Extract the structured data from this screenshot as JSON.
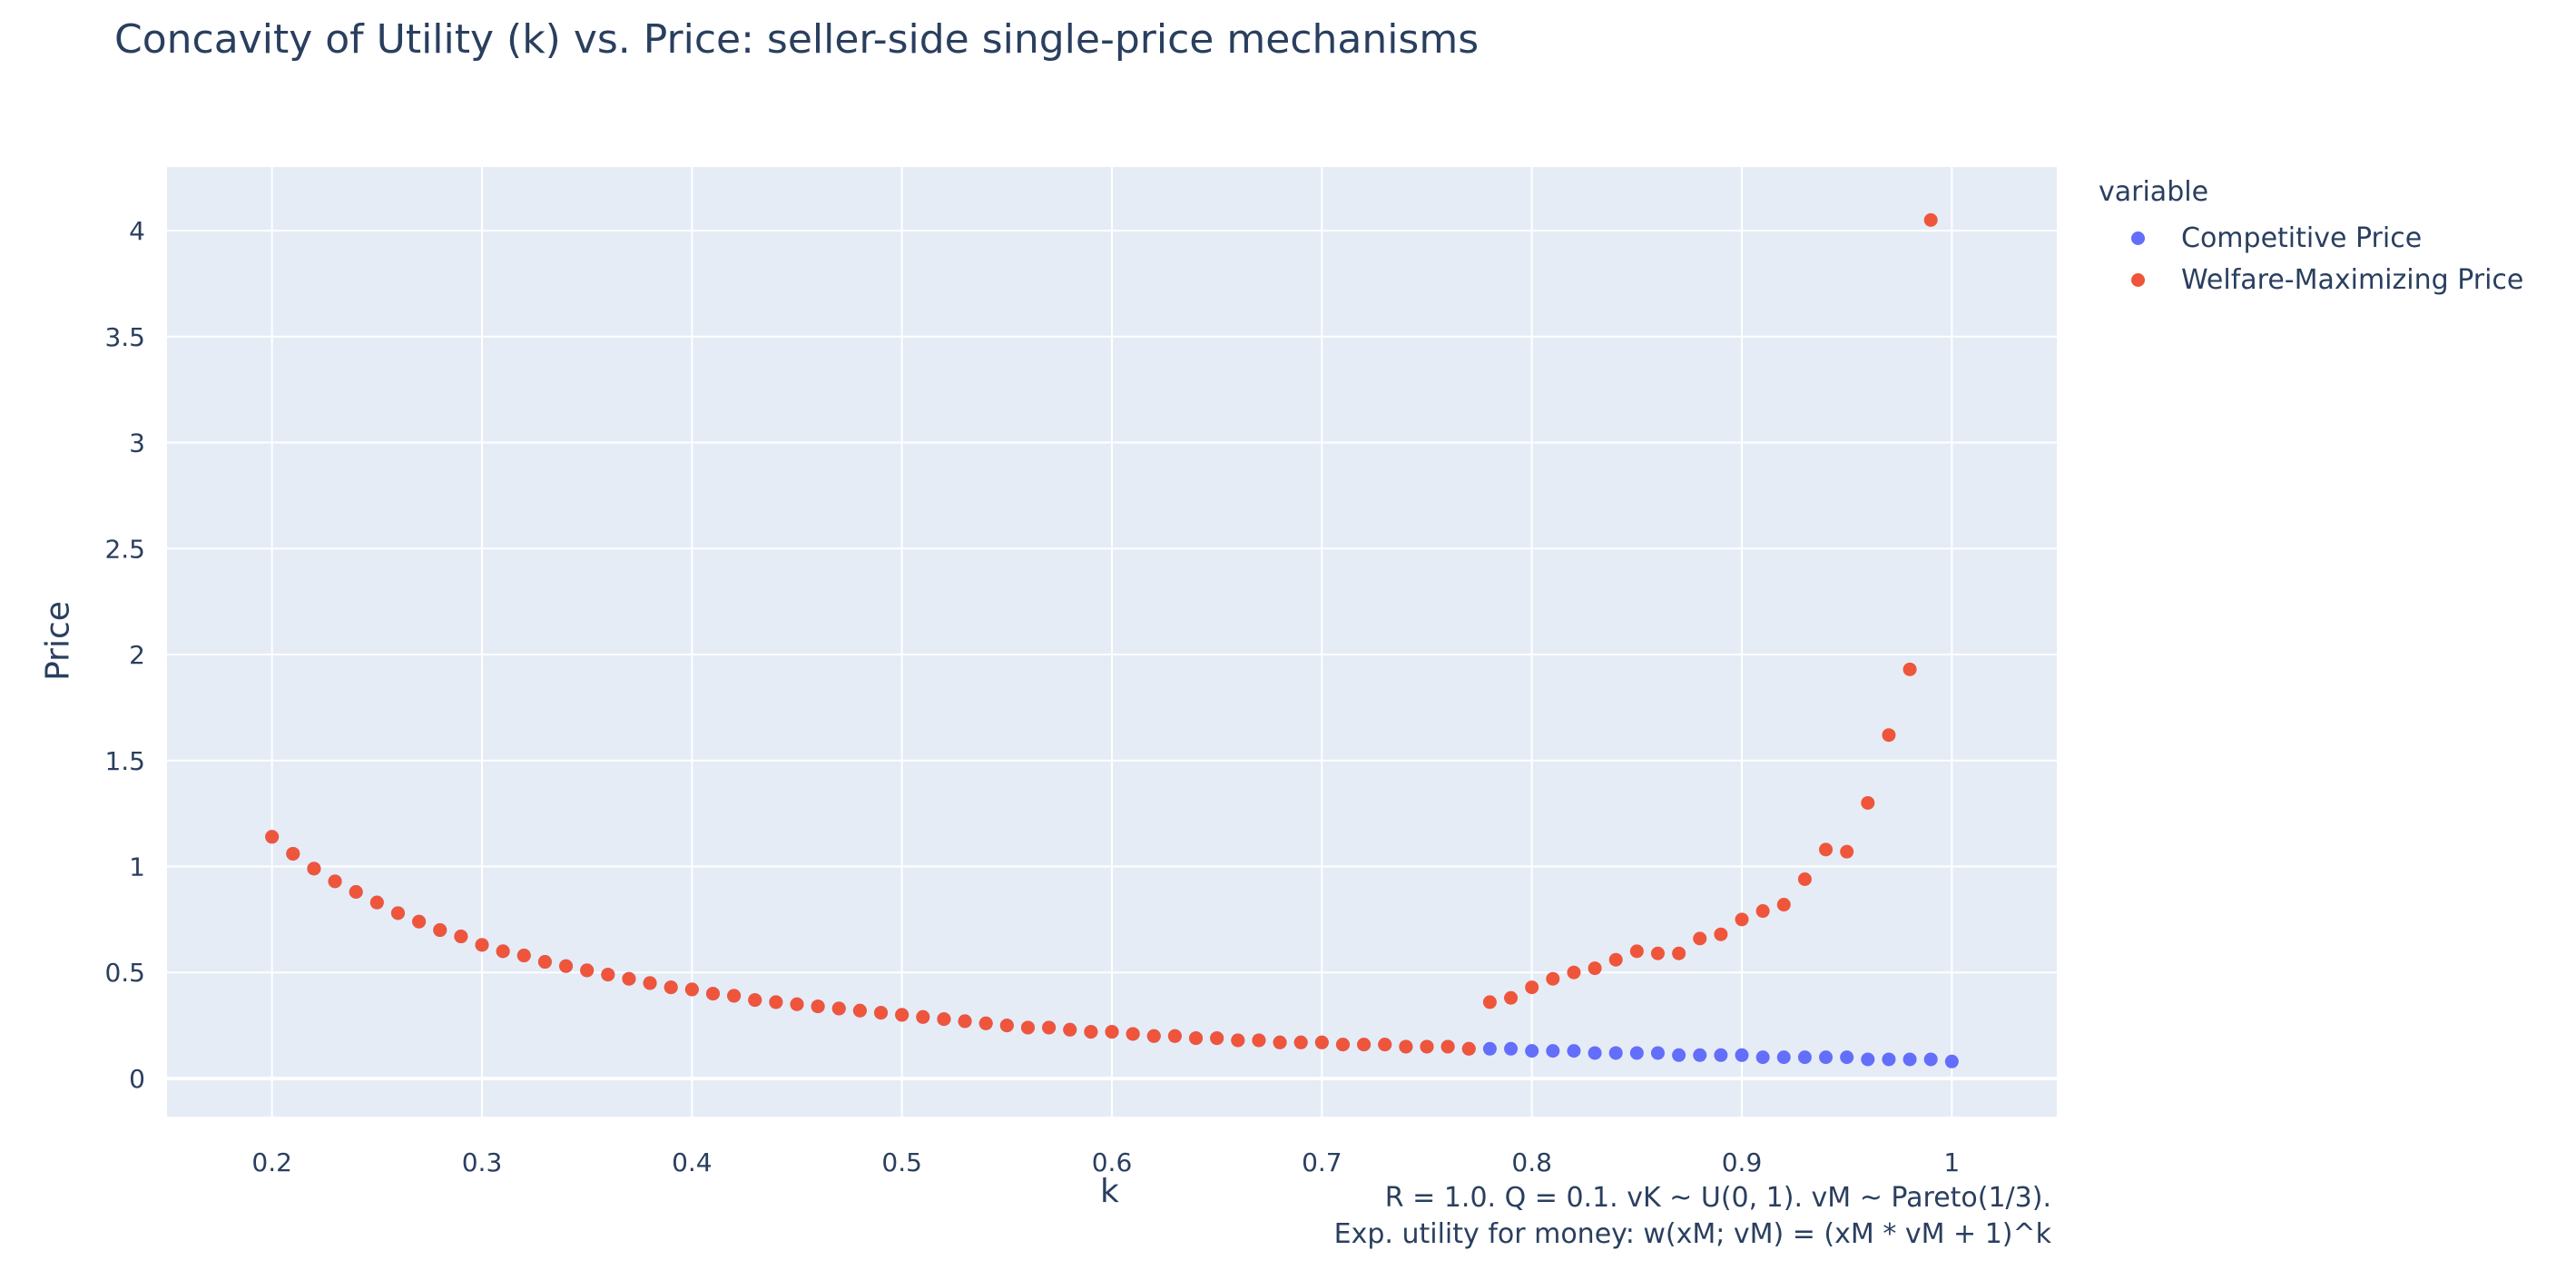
{
  "chart_data": {
    "type": "scatter",
    "title": "Concavity of Utility (k) vs. Price: seller-side single-price mechanisms",
    "xlabel": "k",
    "ylabel": "Price",
    "xlim": [
      0.15,
      1.05
    ],
    "ylim": [
      -0.18,
      4.3
    ],
    "xticks": [
      0.2,
      0.3,
      0.4,
      0.5,
      0.6,
      0.7,
      0.8,
      0.9,
      1
    ],
    "xtick_labels": [
      "0.2",
      "0.3",
      "0.4",
      "0.5",
      "0.6",
      "0.7",
      "0.8",
      "0.9",
      "1"
    ],
    "yticks": [
      0,
      0.5,
      1,
      1.5,
      2,
      2.5,
      3,
      3.5,
      4
    ],
    "ytick_labels": [
      "0",
      "0.5",
      "1",
      "1.5",
      "2",
      "2.5",
      "3",
      "3.5",
      "4"
    ],
    "grid": true,
    "legend_title": "variable",
    "legend_position": "right",
    "series": [
      {
        "name": "Competitive Price",
        "color": "#636efa",
        "x": [
          0.2,
          0.21,
          0.22,
          0.23,
          0.24,
          0.25,
          0.26,
          0.27,
          0.28,
          0.29,
          0.3,
          0.31,
          0.32,
          0.33,
          0.34,
          0.35,
          0.36,
          0.37,
          0.38,
          0.39,
          0.4,
          0.41,
          0.42,
          0.43,
          0.44,
          0.45,
          0.46,
          0.47,
          0.48,
          0.49,
          0.5,
          0.51,
          0.52,
          0.53,
          0.54,
          0.55,
          0.56,
          0.57,
          0.58,
          0.59,
          0.6,
          0.61,
          0.62,
          0.63,
          0.64,
          0.65,
          0.66,
          0.67,
          0.68,
          0.69,
          0.7,
          0.71,
          0.72,
          0.73,
          0.74,
          0.75,
          0.76,
          0.77,
          0.78,
          0.79,
          0.8,
          0.81,
          0.82,
          0.83,
          0.84,
          0.85,
          0.86,
          0.87,
          0.88,
          0.89,
          0.9,
          0.91,
          0.92,
          0.93,
          0.94,
          0.95,
          0.96,
          0.97,
          0.98,
          0.99,
          1.0
        ],
        "y": [
          1.14,
          1.06,
          0.99,
          0.93,
          0.88,
          0.83,
          0.78,
          0.74,
          0.7,
          0.67,
          0.63,
          0.6,
          0.58,
          0.55,
          0.53,
          0.51,
          0.49,
          0.47,
          0.45,
          0.43,
          0.42,
          0.4,
          0.39,
          0.37,
          0.36,
          0.35,
          0.34,
          0.33,
          0.32,
          0.31,
          0.3,
          0.29,
          0.28,
          0.27,
          0.26,
          0.25,
          0.24,
          0.24,
          0.23,
          0.22,
          0.22,
          0.21,
          0.2,
          0.2,
          0.19,
          0.19,
          0.18,
          0.18,
          0.17,
          0.17,
          0.17,
          0.16,
          0.16,
          0.16,
          0.15,
          0.15,
          0.15,
          0.14,
          0.14,
          0.14,
          0.13,
          0.13,
          0.13,
          0.12,
          0.12,
          0.12,
          0.12,
          0.11,
          0.11,
          0.11,
          0.11,
          0.1,
          0.1,
          0.1,
          0.1,
          0.1,
          0.09,
          0.09,
          0.09,
          0.09,
          0.08
        ]
      },
      {
        "name": "Welfare-Maximizing Price",
        "color": "#ef553b",
        "x": [
          0.2,
          0.21,
          0.22,
          0.23,
          0.24,
          0.25,
          0.26,
          0.27,
          0.28,
          0.29,
          0.3,
          0.31,
          0.32,
          0.33,
          0.34,
          0.35,
          0.36,
          0.37,
          0.38,
          0.39,
          0.4,
          0.41,
          0.42,
          0.43,
          0.44,
          0.45,
          0.46,
          0.47,
          0.48,
          0.49,
          0.5,
          0.51,
          0.52,
          0.53,
          0.54,
          0.55,
          0.56,
          0.57,
          0.58,
          0.59,
          0.6,
          0.61,
          0.62,
          0.63,
          0.64,
          0.65,
          0.66,
          0.67,
          0.68,
          0.69,
          0.7,
          0.71,
          0.72,
          0.73,
          0.74,
          0.75,
          0.76,
          0.77,
          0.78,
          0.79,
          0.8,
          0.81,
          0.82,
          0.83,
          0.84,
          0.85,
          0.86,
          0.87,
          0.88,
          0.89,
          0.9,
          0.91,
          0.92,
          0.93,
          0.94,
          0.95,
          0.96,
          0.97,
          0.98,
          0.99
        ],
        "y": [
          1.14,
          1.06,
          0.99,
          0.93,
          0.88,
          0.83,
          0.78,
          0.74,
          0.7,
          0.67,
          0.63,
          0.6,
          0.58,
          0.55,
          0.53,
          0.51,
          0.49,
          0.47,
          0.45,
          0.43,
          0.42,
          0.4,
          0.39,
          0.37,
          0.36,
          0.35,
          0.34,
          0.33,
          0.32,
          0.31,
          0.3,
          0.29,
          0.28,
          0.27,
          0.26,
          0.25,
          0.24,
          0.24,
          0.23,
          0.22,
          0.22,
          0.21,
          0.2,
          0.2,
          0.19,
          0.19,
          0.18,
          0.18,
          0.17,
          0.17,
          0.17,
          0.16,
          0.16,
          0.16,
          0.15,
          0.15,
          0.15,
          0.14,
          0.36,
          0.38,
          0.43,
          0.47,
          0.5,
          0.52,
          0.56,
          0.6,
          0.59,
          0.59,
          0.66,
          0.68,
          0.75,
          0.79,
          0.82,
          0.94,
          1.08,
          1.07,
          1.3,
          1.62,
          1.93,
          4.05
        ]
      }
    ],
    "annotation_lines": [
      "R = 1.0. Q = 0.1. vK ~ U(0, 1). vM ~ Pareto(1/3).",
      "Exp. utility for money: w(xM; vM) = (xM * vM + 1)^k"
    ]
  }
}
